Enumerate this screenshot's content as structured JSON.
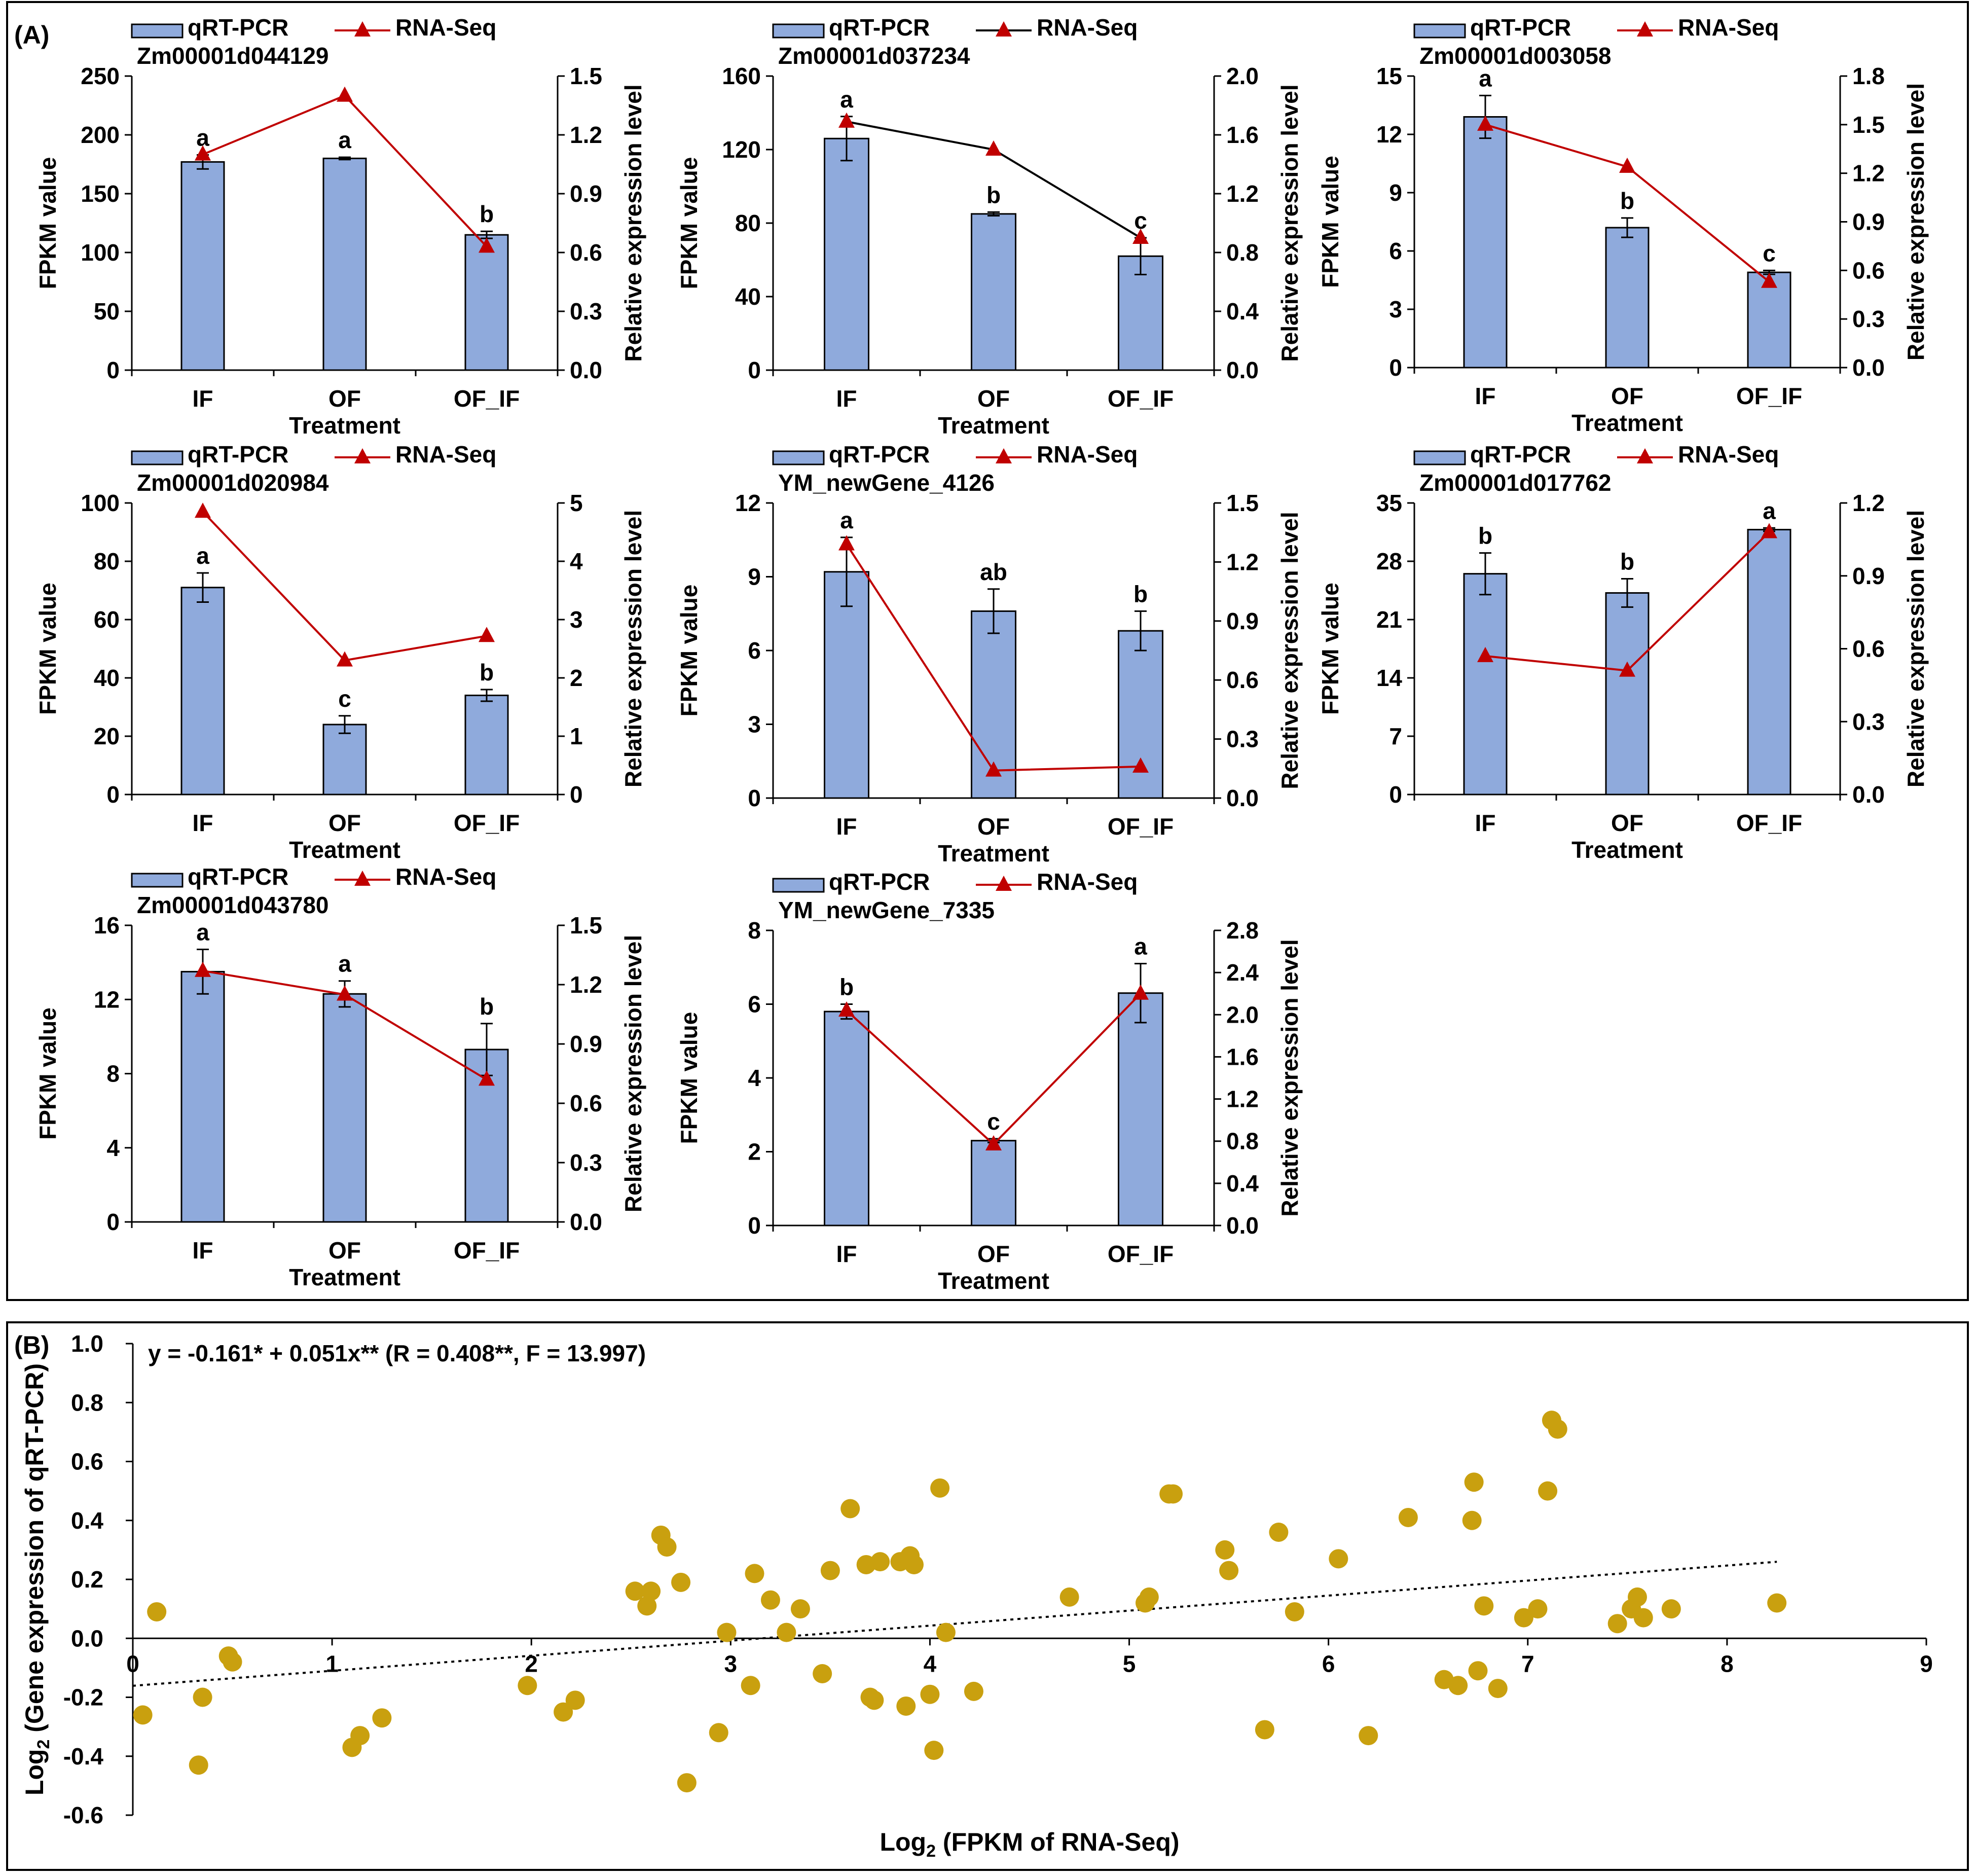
{
  "panel_a_label": "(A)",
  "panel_b_label": "(B)",
  "colors": {
    "bar": "#8faadc",
    "bar_stroke": "#000000",
    "line_red": "#c00000",
    "line_black": "#000000",
    "marker": "#c00000",
    "scatter": "#c9a00f",
    "trend": "#000000"
  },
  "chart_data": [
    {
      "type": "bar",
      "gene": "Zm00001d044129",
      "legend": [
        "qRT-PCR",
        "RNA-Seq"
      ],
      "categories": [
        "IF",
        "OF",
        "OF_IF"
      ],
      "xlabel": "Treatment",
      "ylabel": "FPKM value",
      "y2label": "Relative expression level",
      "ylim": [
        0,
        250
      ],
      "yticks": [
        "0",
        "50",
        "100",
        "150",
        "200",
        "250"
      ],
      "y2lim": [
        0,
        1.5
      ],
      "y2ticks": [
        "0.0",
        "0.3",
        "0.6",
        "0.9",
        "1.2",
        "1.5"
      ],
      "values": [
        177,
        180,
        115
      ],
      "errors": [
        6,
        1,
        3
      ],
      "letters": [
        "a",
        "a",
        "b"
      ],
      "line_values": [
        1.1,
        1.4,
        0.63
      ],
      "line_color": "red"
    },
    {
      "type": "bar",
      "gene": "Zm00001d037234",
      "legend": [
        "qRT-PCR",
        "RNA-Seq"
      ],
      "categories": [
        "IF",
        "OF",
        "OF_IF"
      ],
      "xlabel": "Treatment",
      "ylabel": "FPKM value",
      "y2label": "Relative expression level",
      "ylim": [
        0,
        160
      ],
      "yticks": [
        "0",
        "40",
        "80",
        "120",
        "160"
      ],
      "y2lim": [
        0,
        2.0
      ],
      "y2ticks": [
        "0.0",
        "0.4",
        "0.8",
        "1.2",
        "1.6",
        "2.0"
      ],
      "values": [
        126,
        85,
        62
      ],
      "errors": [
        12,
        1,
        10
      ],
      "letters": [
        "a",
        "b",
        "c"
      ],
      "line_values": [
        1.69,
        1.5,
        0.9
      ],
      "line_color": "black"
    },
    {
      "type": "bar",
      "gene": "Zm00001d003058",
      "legend": [
        "qRT-PCR",
        "RNA-Seq"
      ],
      "categories": [
        "IF",
        "OF",
        "OF_IF"
      ],
      "xlabel": "Treatment",
      "ylabel": "FPKM value",
      "y2label": "Relative expression level",
      "ylim": [
        0,
        15
      ],
      "yticks": [
        "0",
        "3",
        "6",
        "9",
        "12",
        "15"
      ],
      "y2lim": [
        0,
        1.8
      ],
      "y2ticks": [
        "0.0",
        "0.3",
        "0.6",
        "0.9",
        "1.2",
        "1.5",
        "1.8"
      ],
      "values": [
        12.9,
        7.2,
        4.9
      ],
      "errors": [
        1.1,
        0.5,
        0.1
      ],
      "letters": [
        "a",
        "b",
        "c"
      ],
      "line_values": [
        1.5,
        1.24,
        0.53
      ],
      "line_color": "red"
    },
    {
      "type": "bar",
      "gene": "Zm00001d020984",
      "legend": [
        "qRT-PCR",
        "RNA-Seq"
      ],
      "categories": [
        "IF",
        "OF",
        "OF_IF"
      ],
      "xlabel": "Treatment",
      "ylabel": "FPKM value",
      "y2label": "Relative expression level",
      "ylim": [
        0,
        100
      ],
      "yticks": [
        "0",
        "20",
        "40",
        "60",
        "80",
        "100"
      ],
      "y2lim": [
        0,
        5
      ],
      "y2ticks": [
        "0",
        "1",
        "2",
        "3",
        "4",
        "5"
      ],
      "values": [
        71,
        24,
        34
      ],
      "errors": [
        5,
        3,
        2
      ],
      "letters": [
        "a",
        "c",
        "b"
      ],
      "line_values": [
        4.85,
        2.3,
        2.72
      ],
      "line_color": "red"
    },
    {
      "type": "bar",
      "gene": "YM_newGene_4126",
      "legend": [
        "qRT-PCR",
        "RNA-Seq"
      ],
      "categories": [
        "IF",
        "OF",
        "OF_IF"
      ],
      "xlabel": "Treatment",
      "ylabel": "FPKM value",
      "y2label": "Relative expression level",
      "ylim": [
        0,
        12
      ],
      "yticks": [
        "0",
        "3",
        "6",
        "9",
        "12"
      ],
      "y2lim": [
        0,
        1.5
      ],
      "y2ticks": [
        "0.0",
        "0.3",
        "0.6",
        "0.9",
        "1.2",
        "1.5"
      ],
      "values": [
        9.2,
        7.6,
        6.8
      ],
      "errors": [
        1.4,
        0.9,
        0.8
      ],
      "letters": [
        "a",
        "ab",
        "b"
      ],
      "line_values": [
        1.29,
        0.14,
        0.16
      ],
      "line_color": "red"
    },
    {
      "type": "bar",
      "gene": "Zm00001d017762",
      "legend": [
        "qRT-PCR",
        "RNA-Seq"
      ],
      "categories": [
        "IF",
        "OF",
        "OF_IF"
      ],
      "xlabel": "Treatment",
      "ylabel": "FPKM value",
      "y2label": "Relative expression level",
      "ylim": [
        0,
        35
      ],
      "yticks": [
        "0",
        "7",
        "14",
        "21",
        "28",
        "35"
      ],
      "y2lim": [
        0,
        1.2
      ],
      "y2ticks": [
        "0.0",
        "0.3",
        "0.6",
        "0.9",
        "1.2"
      ],
      "values": [
        26.5,
        24.2,
        31.8
      ],
      "errors": [
        2.5,
        1.7,
        0.2
      ],
      "letters": [
        "b",
        "b",
        "a"
      ],
      "line_values": [
        0.57,
        0.51,
        1.08
      ],
      "line_color": "red"
    },
    {
      "type": "bar",
      "gene": "Zm00001d043780",
      "legend": [
        "qRT-PCR",
        "RNA-Seq"
      ],
      "categories": [
        "IF",
        "OF",
        "OF_IF"
      ],
      "xlabel": "Treatment",
      "ylabel": "FPKM value",
      "y2label": "Relative expression level",
      "ylim": [
        0,
        16
      ],
      "yticks": [
        "0",
        "4",
        "8",
        "12",
        "16"
      ],
      "y2lim": [
        0,
        1.5
      ],
      "y2ticks": [
        "0.0",
        "0.3",
        "0.6",
        "0.9",
        "1.2",
        "1.5"
      ],
      "values": [
        13.5,
        12.3,
        9.3
      ],
      "errors": [
        1.2,
        0.7,
        1.4
      ],
      "letters": [
        "a",
        "a",
        "b"
      ],
      "line_values": [
        1.27,
        1.15,
        0.72
      ],
      "line_color": "red"
    },
    {
      "type": "bar",
      "gene": "YM_newGene_7335",
      "legend": [
        "qRT-PCR",
        "RNA-Seq"
      ],
      "categories": [
        "IF",
        "OF",
        "OF_IF"
      ],
      "xlabel": "Treatment",
      "ylabel": "FPKM value",
      "y2label": "Relative expression level",
      "ylim": [
        0,
        8
      ],
      "yticks": [
        "0",
        "2",
        "4",
        "6",
        "8"
      ],
      "y2lim": [
        0,
        2.8
      ],
      "y2ticks": [
        "0.0",
        "0.4",
        "0.8",
        "1.2",
        "1.6",
        "2.0",
        "2.4",
        "2.8"
      ],
      "values": [
        5.8,
        2.3,
        6.3
      ],
      "errors": [
        0.2,
        0.05,
        0.8
      ],
      "letters": [
        "b",
        "c",
        "a"
      ],
      "line_values": [
        2.04,
        0.77,
        2.2
      ],
      "line_color": "red"
    },
    {
      "type": "scatter",
      "equation": "y = -0.161* + 0.051x** (R = 0.408**, F = 13.997)",
      "xlabel_main": "Log",
      "xlabel_sub": "2",
      "xlabel_rest": " (FPKM of RNA-Seq)",
      "ylabel_main": "Log",
      "ylabel_sub": "2",
      "ylabel_rest": " (Gene expression of qRT-PCR)",
      "xlim": [
        0,
        9
      ],
      "xticks": [
        "0",
        "1",
        "2",
        "3",
        "4",
        "5",
        "6",
        "7",
        "8",
        "9"
      ],
      "ylim": [
        -0.6,
        1.0
      ],
      "yticks": [
        "-0.6",
        "-0.4",
        "-0.2",
        "0.0",
        "0.2",
        "0.4",
        "0.6",
        "0.8",
        "1.0"
      ],
      "trendline": {
        "intercept": -0.161,
        "slope": 0.051,
        "x_range": [
          0,
          8.25
        ]
      },
      "points": [
        [
          0.05,
          -0.26
        ],
        [
          0.12,
          0.09
        ],
        [
          0.33,
          -0.43
        ],
        [
          0.35,
          -0.2
        ],
        [
          0.48,
          -0.06
        ],
        [
          0.5,
          -0.08
        ],
        [
          1.1,
          -0.37
        ],
        [
          1.14,
          -0.33
        ],
        [
          1.25,
          -0.27
        ],
        [
          1.98,
          -0.16
        ],
        [
          2.16,
          -0.25
        ],
        [
          2.22,
          -0.21
        ],
        [
          2.52,
          0.16
        ],
        [
          2.58,
          0.11
        ],
        [
          2.6,
          0.16
        ],
        [
          2.65,
          0.35
        ],
        [
          2.68,
          0.31
        ],
        [
          2.75,
          0.19
        ],
        [
          2.78,
          -0.49
        ],
        [
          2.94,
          -0.32
        ],
        [
          2.98,
          0.02
        ],
        [
          3.1,
          -0.16
        ],
        [
          3.12,
          0.22
        ],
        [
          3.2,
          0.13
        ],
        [
          3.28,
          0.02
        ],
        [
          3.35,
          0.1
        ],
        [
          3.46,
          -0.12
        ],
        [
          3.5,
          0.23
        ],
        [
          3.6,
          0.44
        ],
        [
          3.68,
          0.25
        ],
        [
          3.7,
          -0.2
        ],
        [
          3.72,
          -0.21
        ],
        [
          3.75,
          0.26
        ],
        [
          3.85,
          0.26
        ],
        [
          3.88,
          -0.23
        ],
        [
          3.9,
          0.28
        ],
        [
          3.92,
          0.25
        ],
        [
          4.0,
          -0.19
        ],
        [
          4.02,
          -0.38
        ],
        [
          4.05,
          0.51
        ],
        [
          4.08,
          0.02
        ],
        [
          4.22,
          -0.18
        ],
        [
          4.7,
          0.14
        ],
        [
          5.08,
          0.12
        ],
        [
          5.1,
          0.14
        ],
        [
          5.2,
          0.49
        ],
        [
          5.22,
          0.49
        ],
        [
          5.48,
          0.3
        ],
        [
          5.5,
          0.23
        ],
        [
          5.68,
          -0.31
        ],
        [
          5.75,
          0.36
        ],
        [
          5.83,
          0.09
        ],
        [
          6.05,
          0.27
        ],
        [
          6.2,
          -0.33
        ],
        [
          6.4,
          0.41
        ],
        [
          6.58,
          -0.14
        ],
        [
          6.65,
          -0.16
        ],
        [
          6.72,
          0.4
        ],
        [
          6.73,
          0.53
        ],
        [
          6.75,
          -0.11
        ],
        [
          6.78,
          0.11
        ],
        [
          6.85,
          -0.17
        ],
        [
          6.98,
          0.07
        ],
        [
          7.05,
          0.1
        ],
        [
          7.1,
          0.5
        ],
        [
          7.12,
          0.74
        ],
        [
          7.15,
          0.71
        ],
        [
          7.45,
          0.05
        ],
        [
          7.52,
          0.1
        ],
        [
          7.55,
          0.14
        ],
        [
          7.58,
          0.07
        ],
        [
          7.72,
          0.1
        ],
        [
          8.25,
          0.12
        ]
      ]
    }
  ]
}
